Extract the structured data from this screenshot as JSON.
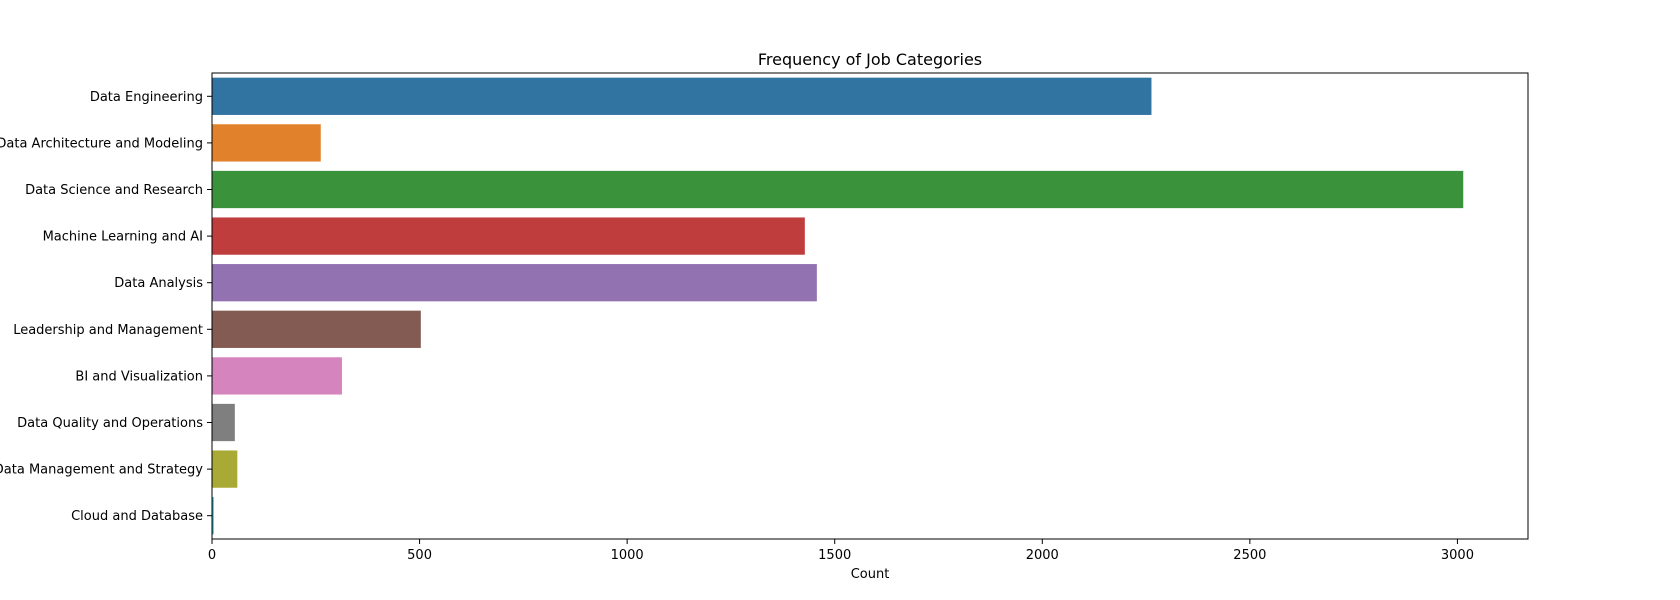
{
  "chart_data": {
    "type": "bar",
    "orientation": "horizontal",
    "title": "Frequency of Job Categories",
    "xlabel": "Count",
    "ylabel": "",
    "xlim": [
      0,
      3170
    ],
    "xticks": [
      0,
      500,
      1000,
      1500,
      2000,
      2500,
      3000
    ],
    "grid": false,
    "categories": [
      "Data Engineering",
      "Data Architecture and Modeling",
      "Data Science and Research",
      "Machine Learning and AI",
      "Data Analysis",
      "Leadership and Management",
      "BI and Visualization",
      "Data Quality and Operations",
      "Data Management and Strategy",
      "Cloud and Database"
    ],
    "values": [
      2263,
      262,
      3014,
      1428,
      1457,
      503,
      313,
      55,
      61,
      4
    ],
    "colors": [
      "#3274a1",
      "#e1812c",
      "#3a923a",
      "#c03d3e",
      "#9372b2",
      "#845b53",
      "#d684bd",
      "#7f7f7f",
      "#a9aa35",
      "#2eacbf"
    ]
  }
}
